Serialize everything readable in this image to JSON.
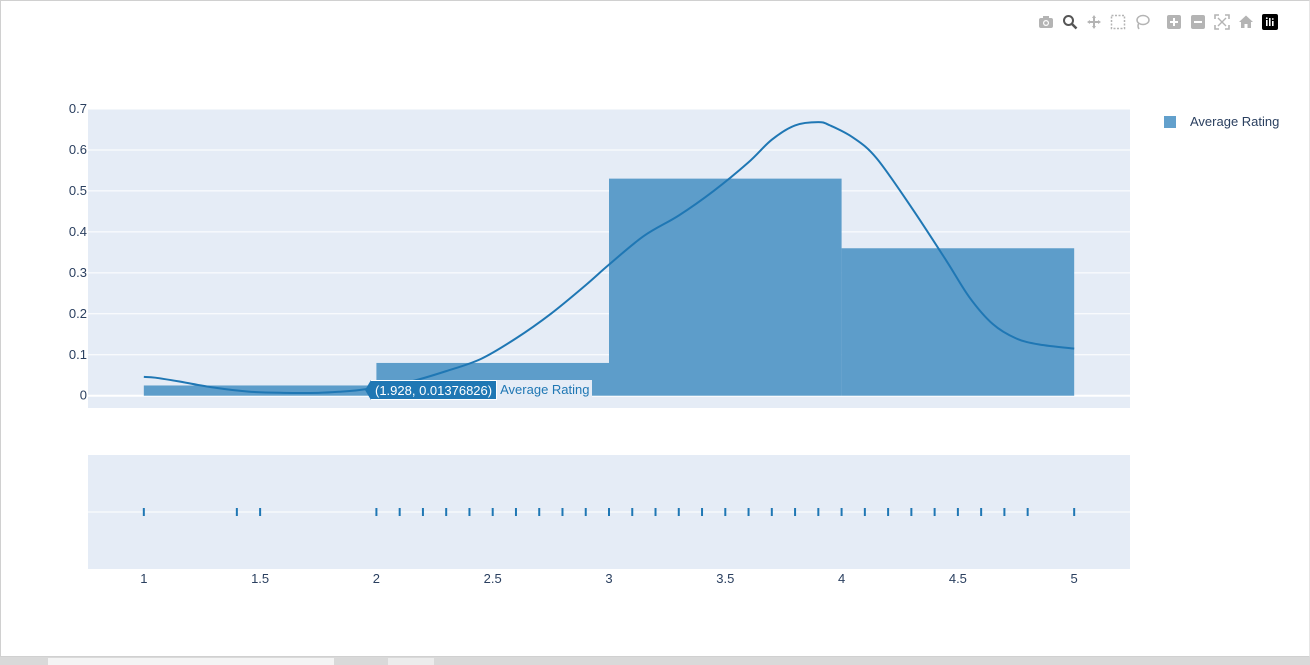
{
  "modebar": {
    "buttons": [
      {
        "icon": "camera-icon"
      },
      {
        "icon": "zoom-icon",
        "active": true
      },
      {
        "icon": "pan-icon"
      },
      {
        "icon": "box-select-icon"
      },
      {
        "icon": "lasso-select-icon"
      },
      {
        "icon": "zoom-in-icon"
      },
      {
        "icon": "zoom-out-icon"
      },
      {
        "icon": "autoscale-icon"
      },
      {
        "icon": "reset-axes-icon"
      },
      {
        "icon": "plotly-logo-icon"
      }
    ]
  },
  "legend": {
    "label": "Average Rating"
  },
  "tooltip": {
    "value": "(1.928, 0.01376826)",
    "name": "Average Rating"
  },
  "chart_data": {
    "type": "histogram",
    "title": "",
    "xlabel": "",
    "ylabel": "",
    "xlim": [
      0.76,
      5.24
    ],
    "ylim": [
      -0.03,
      0.7
    ],
    "yticks": [
      0,
      0.1,
      0.2,
      0.3,
      0.4,
      0.5,
      0.6,
      0.7
    ],
    "xticks": [
      1,
      1.5,
      2,
      2.5,
      3,
      3.5,
      4,
      4.5,
      5
    ],
    "grid": true,
    "legend_position": "top-right",
    "colors": {
      "bar": "#5a9bc9",
      "curve": "#1f77b4",
      "plot_bg": "#e5ecf6",
      "rug": "#1f77b4"
    },
    "series": [
      {
        "name": "Average Rating",
        "bars": [
          {
            "x0": 1,
            "x1": 2,
            "y": 0.025
          },
          {
            "x0": 2,
            "x1": 3,
            "y": 0.08
          },
          {
            "x0": 3,
            "x1": 4,
            "y": 0.53
          },
          {
            "x0": 4,
            "x1": 5,
            "y": 0.36
          }
        ],
        "kde": {
          "x": [
            1,
            1.05,
            1.15,
            1.3,
            1.45,
            1.6,
            1.75,
            1.85,
            1.928,
            2.0,
            2.15,
            2.3,
            2.45,
            2.6,
            2.75,
            2.9,
            3.0,
            3.15,
            3.3,
            3.45,
            3.6,
            3.7,
            3.8,
            3.9,
            3.95,
            4.05,
            4.15,
            4.3,
            4.45,
            4.55,
            4.65,
            4.75,
            4.85,
            5.0
          ],
          "y": [
            0.046,
            0.044,
            0.035,
            0.02,
            0.01,
            0.007,
            0.007,
            0.01,
            0.014,
            0.02,
            0.035,
            0.06,
            0.09,
            0.14,
            0.2,
            0.27,
            0.32,
            0.39,
            0.44,
            0.5,
            0.57,
            0.625,
            0.66,
            0.668,
            0.66,
            0.63,
            0.58,
            0.46,
            0.33,
            0.24,
            0.175,
            0.14,
            0.125,
            0.115
          ]
        },
        "rug": [
          1,
          1.4,
          1.5,
          2,
          2.1,
          2.2,
          2.3,
          2.4,
          2.5,
          2.6,
          2.7,
          2.8,
          2.9,
          3,
          3.1,
          3.2,
          3.3,
          3.4,
          3.5,
          3.6,
          3.7,
          3.8,
          3.9,
          4,
          4.1,
          4.2,
          4.3,
          4.4,
          4.5,
          4.6,
          4.7,
          4.8,
          5
        ]
      }
    ]
  }
}
